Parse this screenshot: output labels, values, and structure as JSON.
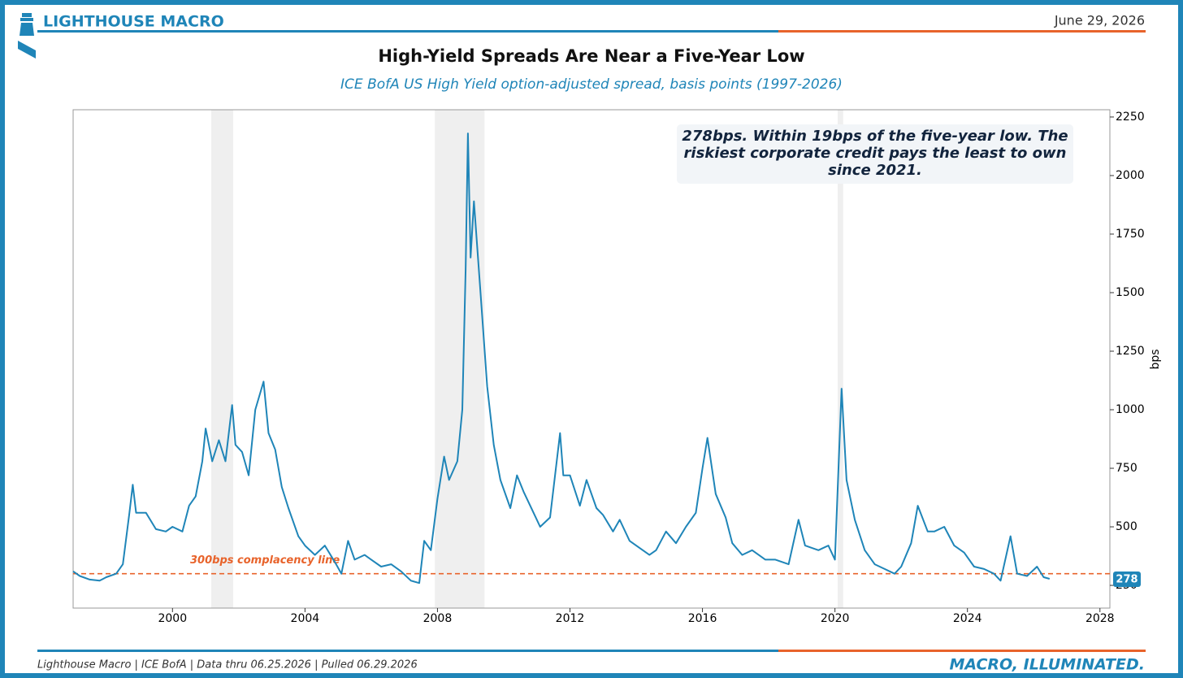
{
  "header": {
    "brand": "LIGHTHOUSE MACRO",
    "date": "June 29, 2026"
  },
  "chart_data": {
    "type": "line",
    "title": "High-Yield Spreads Are Near a Five-Year Low",
    "subtitle": "ICE BofA US High Yield option-adjusted spread, basis points (1997-2026)",
    "y_label": "bps",
    "annotation": "278bps. Within 19bps of the five-year low. The riskiest corporate credit pays the least to own since 2021.",
    "xlim": [
      1997,
      2028.3
    ],
    "xticks": [
      2000,
      2004,
      2008,
      2012,
      2016,
      2020,
      2024,
      2028
    ],
    "ylim": [
      153,
      2281
    ],
    "yticks": [
      250,
      500,
      750,
      1000,
      1250,
      1500,
      1750,
      2000,
      2250
    ],
    "recessions": [
      [
        2001.17,
        2001.83
      ],
      [
        2007.92,
        2009.42
      ],
      [
        2020.08,
        2020.25
      ]
    ],
    "reference_line": {
      "value": 300,
      "label": "300bps complacency line",
      "color": "#e8632b"
    },
    "x": [
      1997.0,
      1997.2,
      1997.5,
      1997.8,
      1998.0,
      1998.3,
      1998.5,
      1998.7,
      1998.8,
      1998.9,
      1999.2,
      1999.5,
      1999.8,
      2000.0,
      2000.3,
      2000.5,
      2000.7,
      2000.9,
      2001.0,
      2001.2,
      2001.4,
      2001.6,
      2001.8,
      2001.9,
      2002.1,
      2002.3,
      2002.5,
      2002.75,
      2002.9,
      2003.1,
      2003.3,
      2003.5,
      2003.8,
      2004.0,
      2004.3,
      2004.6,
      2004.9,
      2005.1,
      2005.3,
      2005.5,
      2005.8,
      2006.0,
      2006.3,
      2006.6,
      2006.9,
      2007.2,
      2007.45,
      2007.6,
      2007.8,
      2008.0,
      2008.2,
      2008.35,
      2008.6,
      2008.75,
      2008.85,
      2008.92,
      2009.0,
      2009.1,
      2009.3,
      2009.5,
      2009.7,
      2009.9,
      2010.2,
      2010.4,
      2010.6,
      2010.9,
      2011.1,
      2011.4,
      2011.7,
      2011.8,
      2012.0,
      2012.3,
      2012.5,
      2012.8,
      2013.0,
      2013.3,
      2013.5,
      2013.8,
      2014.0,
      2014.4,
      2014.6,
      2014.9,
      2015.2,
      2015.5,
      2015.8,
      2016.0,
      2016.15,
      2016.4,
      2016.7,
      2016.9,
      2017.2,
      2017.5,
      2017.9,
      2018.2,
      2018.6,
      2018.9,
      2019.1,
      2019.5,
      2019.8,
      2020.0,
      2020.2,
      2020.35,
      2020.6,
      2020.9,
      2021.2,
      2021.5,
      2021.8,
      2022.0,
      2022.3,
      2022.5,
      2022.8,
      2023.0,
      2023.3,
      2023.6,
      2023.9,
      2024.2,
      2024.5,
      2024.8,
      2025.0,
      2025.3,
      2025.5,
      2025.8,
      2026.1,
      2026.3,
      2026.48
    ],
    "series": [
      {
        "color": "#1f85b8",
        "values": [
          310,
          290,
          275,
          270,
          285,
          300,
          340,
          560,
          680,
          560,
          560,
          490,
          480,
          500,
          480,
          590,
          630,
          780,
          920,
          780,
          870,
          780,
          1020,
          850,
          820,
          720,
          1000,
          1120,
          900,
          830,
          670,
          580,
          460,
          420,
          380,
          420,
          350,
          300,
          440,
          360,
          380,
          360,
          330,
          340,
          310,
          270,
          260,
          440,
          400,
          620,
          800,
          700,
          780,
          1000,
          1600,
          2180,
          1650,
          1890,
          1500,
          1100,
          850,
          700,
          580,
          720,
          650,
          560,
          500,
          540,
          900,
          720,
          720,
          590,
          700,
          580,
          550,
          480,
          530,
          440,
          420,
          380,
          400,
          480,
          430,
          500,
          560,
          750,
          880,
          640,
          540,
          430,
          380,
          400,
          360,
          360,
          340,
          530,
          420,
          400,
          420,
          360,
          1090,
          700,
          530,
          400,
          340,
          320,
          300,
          330,
          430,
          590,
          480,
          480,
          500,
          420,
          390,
          330,
          320,
          300,
          270,
          460,
          300,
          290,
          330,
          285,
          278
        ]
      }
    ]
  },
  "footer": {
    "source": "Lighthouse Macro | ICE BofA | Data thru 06.25.2026 | Pulled 06.29.2026",
    "tagline": "MACRO, ILLUMINATED."
  }
}
